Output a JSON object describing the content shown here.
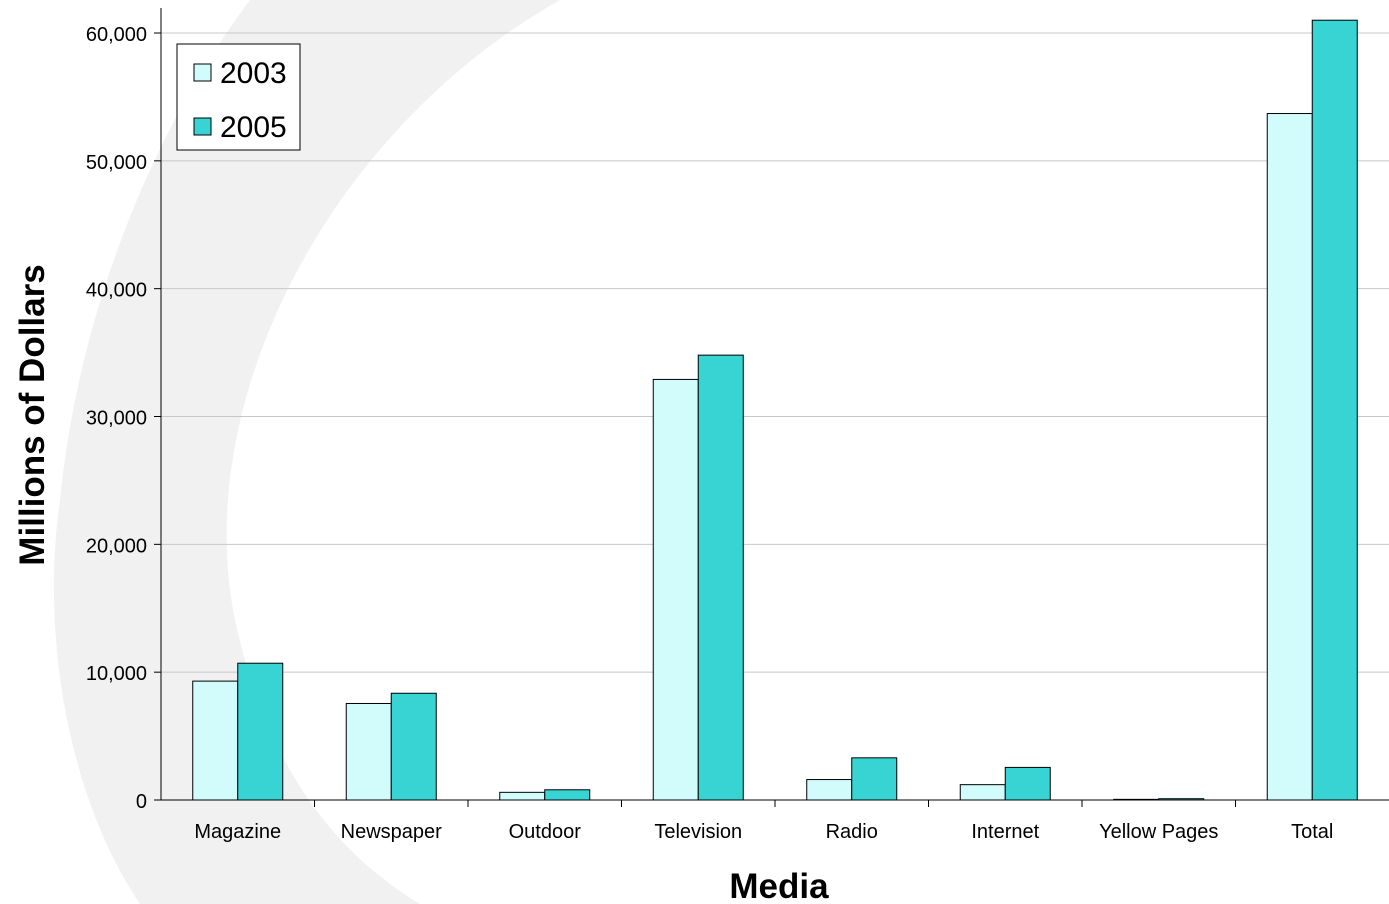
{
  "chart_data": {
    "type": "bar",
    "title": "",
    "xlabel": "Media",
    "ylabel": "Millions of Dollars",
    "categories": [
      "Magazine",
      "Newspaper",
      "Outdoor",
      "Television",
      "Radio",
      "Internet",
      "Yellow Pages",
      "Total"
    ],
    "series": [
      {
        "name": "2003",
        "color": "#d2fcfc",
        "values": [
          9300,
          7550,
          600,
          32900,
          1600,
          1200,
          50,
          53700
        ]
      },
      {
        "name": "2005",
        "color": "#38d4d4",
        "values": [
          10700,
          8350,
          800,
          34800,
          3300,
          2550,
          100,
          61000
        ]
      }
    ],
    "ylim": [
      0,
      60000
    ],
    "yticks": [
      0,
      10000,
      20000,
      30000,
      40000,
      50000,
      60000
    ],
    "ytick_labels": [
      "0",
      "10,000",
      "20,000",
      "30,000",
      "40,000",
      "50,000",
      "60,000"
    ],
    "grid": true,
    "legend_position": "top-left"
  }
}
